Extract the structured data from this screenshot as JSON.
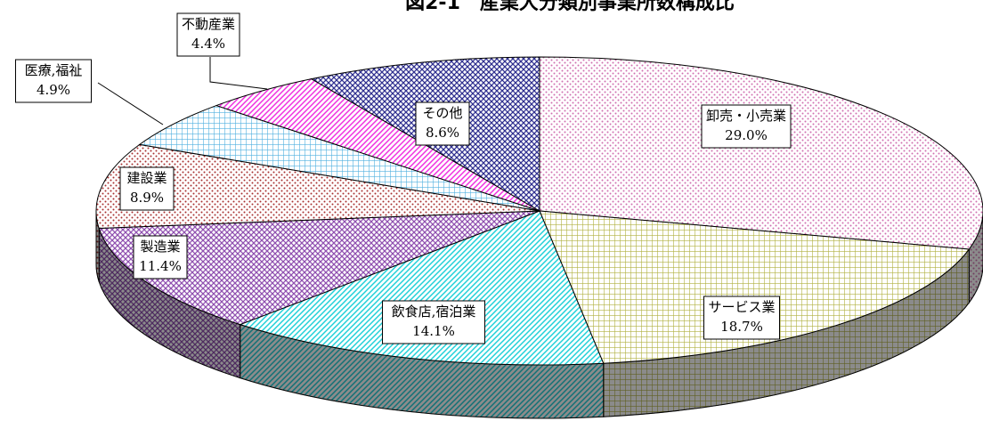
{
  "chart_data": {
    "type": "pie",
    "title": "図2-1　産業大分類別事業所数構成比",
    "categories": [
      "卸売・小売業",
      "サービス業",
      "飲食店,宿泊業",
      "製造業",
      "建設業",
      "医療,福祉",
      "不動産業",
      "その他"
    ],
    "values": [
      29.0,
      18.7,
      14.1,
      11.4,
      8.9,
      4.9,
      4.4,
      8.6
    ],
    "value_labels": [
      "29.0%",
      "18.7%",
      "14.1%",
      "11.4%",
      "8.9%",
      "4.9%",
      "4.4%",
      "8.6%"
    ],
    "colors": [
      "#d070b0",
      "#b0b040",
      "#20d0d8",
      "#9050b0",
      "#a83030",
      "#50b0e0",
      "#f030e0",
      "#303090"
    ]
  }
}
